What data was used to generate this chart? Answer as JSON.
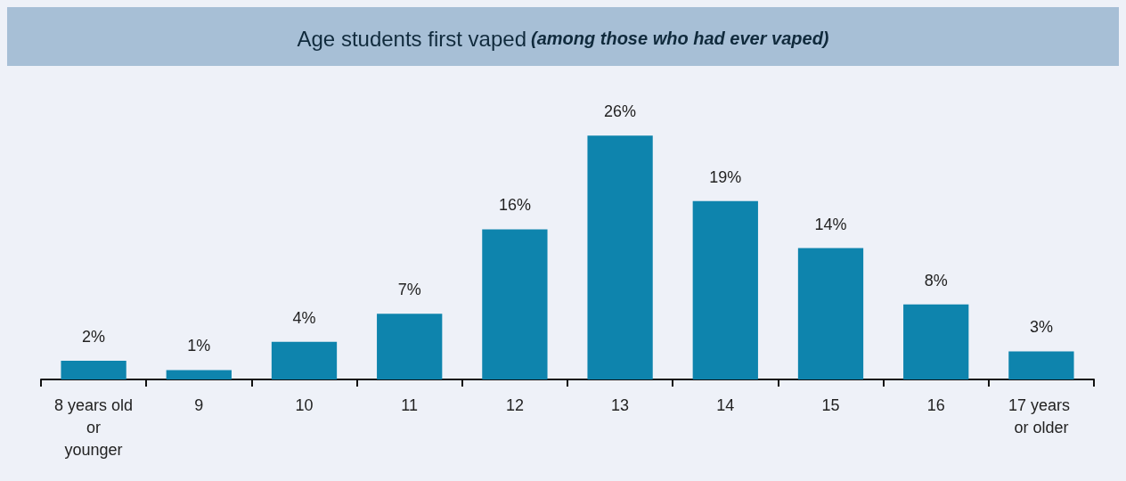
{
  "chart_data": {
    "type": "bar",
    "title": "Age students first vaped",
    "subtitle": "(among those who had ever vaped)",
    "categories": [
      "8 years old or younger",
      "9",
      "10",
      "11",
      "12",
      "13",
      "14",
      "15",
      "16",
      "17 years or older"
    ],
    "values": [
      2,
      1,
      4,
      7,
      16,
      26,
      19,
      14,
      8,
      3
    ],
    "value_labels": [
      "2%",
      "1%",
      "4%",
      "7%",
      "16%",
      "26%",
      "19%",
      "14%",
      "8%",
      "3%"
    ],
    "color": "#0e84ad",
    "grid": false
  }
}
